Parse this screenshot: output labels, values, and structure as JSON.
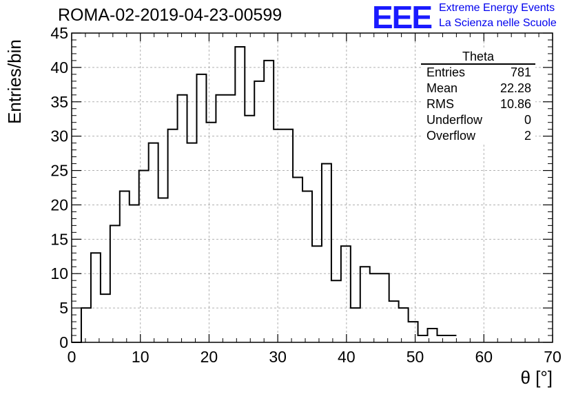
{
  "header": {
    "title": "ROMA-02-2019-04-23-00599",
    "logo_text": "EEE",
    "logo_line1": "Extreme Energy Events",
    "logo_line2": "La Scienza nelle Scuole"
  },
  "stats_box": {
    "title": "Theta",
    "rows": [
      {
        "label": "Entries",
        "value": "781"
      },
      {
        "label": "Mean",
        "value": "22.28"
      },
      {
        "label": "RMS",
        "value": "10.86"
      },
      {
        "label": "Underflow",
        "value": "0"
      },
      {
        "label": "Overflow",
        "value": "2"
      }
    ]
  },
  "chart_data": {
    "type": "bar",
    "style": "step-histogram",
    "xlabel": "θ [°]",
    "ylabel": "Entries/bin",
    "xlim": [
      0,
      70
    ],
    "ylim": [
      0,
      45
    ],
    "bin_width": 1.4,
    "bin_edges_start": 0,
    "values": [
      0,
      5,
      13,
      7,
      17,
      22,
      20,
      25,
      29,
      21,
      31,
      36,
      29,
      39,
      32,
      36,
      36,
      43,
      33,
      38,
      41,
      31,
      31,
      24,
      22,
      14,
      26,
      9,
      14,
      5,
      11,
      10,
      10,
      6,
      5,
      3,
      1,
      2,
      1,
      1
    ],
    "xticks": [
      0,
      10,
      20,
      30,
      40,
      50,
      60,
      70
    ],
    "yticks": [
      0,
      5,
      10,
      15,
      20,
      25,
      30,
      35,
      40,
      45
    ],
    "grid": true,
    "line_color": "#000000",
    "grid_color": "#b0b0b0"
  }
}
